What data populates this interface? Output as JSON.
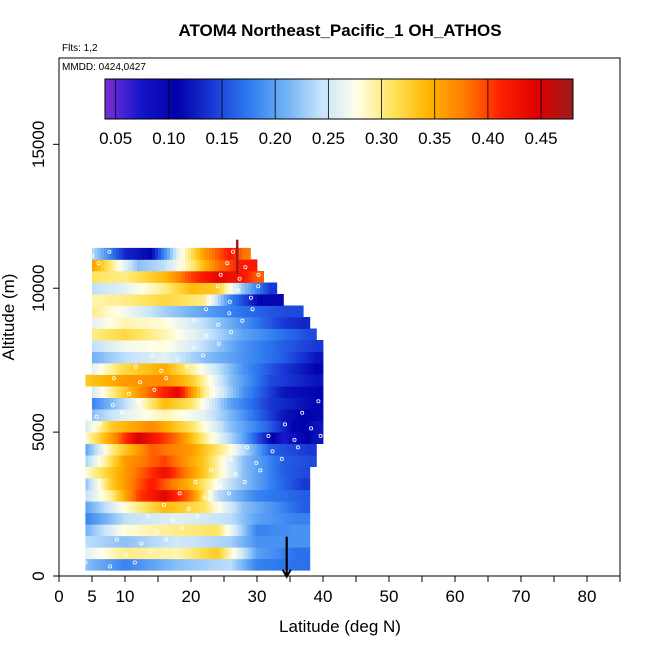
{
  "chart_data": {
    "type": "heatmap",
    "title": "ATOM4 Northeast_Pacific_1 OH_ATHOS",
    "annotations": [
      "Flts: 1,2",
      "MMDD: 0424,0427"
    ],
    "xlabel": "Latitude (deg N)",
    "ylabel": "Altitude (m)",
    "xlim": [
      0,
      85
    ],
    "ylim": [
      0,
      18000
    ],
    "x_ticks": [
      0,
      5,
      10,
      20,
      30,
      40,
      50,
      60,
      70,
      80
    ],
    "y_ticks": [
      0,
      5000,
      10000,
      15000
    ],
    "colorbar": {
      "range": [
        0.04,
        0.48
      ],
      "ticks": [
        "0.05",
        "0.10",
        "0.15",
        "0.20",
        "0.25",
        "0.30",
        "0.35",
        "0.40",
        "0.45"
      ],
      "colors": [
        "#7b2fd9",
        "#1515c9",
        "#0000aa",
        "#1a3ad6",
        "#2e7bf0",
        "#6fb0f5",
        "#c6e3fb",
        "#ffffe8",
        "#ffe35c",
        "#ffb400",
        "#ff7a00",
        "#ff2000",
        "#dd0000",
        "#9c1c1c"
      ]
    },
    "series": [
      {
        "alt": 400,
        "lat_range": [
          4,
          38
        ],
        "values": [
          [
            4,
            0.22
          ],
          [
            10,
            0.18
          ],
          [
            18,
            0.22
          ],
          [
            26,
            0.24
          ],
          [
            30,
            0.18
          ],
          [
            36,
            0.17
          ]
        ]
      },
      {
        "alt": 800,
        "lat_range": [
          4,
          38
        ],
        "values": [
          [
            4,
            0.26
          ],
          [
            10,
            0.3
          ],
          [
            18,
            0.29
          ],
          [
            24,
            0.33
          ],
          [
            30,
            0.2
          ],
          [
            36,
            0.17
          ]
        ]
      },
      {
        "alt": 1200,
        "lat_range": [
          4,
          38
        ],
        "values": [
          [
            4,
            0.24
          ],
          [
            10,
            0.22
          ],
          [
            18,
            0.25
          ],
          [
            26,
            0.23
          ],
          [
            30,
            0.19
          ],
          [
            36,
            0.19
          ]
        ]
      },
      {
        "alt": 1600,
        "lat_range": [
          4,
          38
        ],
        "values": [
          [
            4,
            0.21
          ],
          [
            10,
            0.28
          ],
          [
            18,
            0.3
          ],
          [
            24,
            0.31
          ],
          [
            30,
            0.18
          ],
          [
            36,
            0.19
          ]
        ]
      },
      {
        "alt": 2000,
        "lat_range": [
          4,
          38
        ],
        "values": [
          [
            4,
            0.18
          ],
          [
            10,
            0.24
          ],
          [
            18,
            0.26
          ],
          [
            26,
            0.24
          ],
          [
            30,
            0.2
          ],
          [
            36,
            0.18
          ]
        ]
      },
      {
        "alt": 2400,
        "lat_range": [
          4,
          38
        ],
        "values": [
          [
            4,
            0.2
          ],
          [
            10,
            0.28
          ],
          [
            16,
            0.34
          ],
          [
            22,
            0.31
          ],
          [
            28,
            0.22
          ],
          [
            34,
            0.18
          ],
          [
            37,
            0.16
          ]
        ]
      },
      {
        "alt": 2800,
        "lat_range": [
          4,
          38
        ],
        "values": [
          [
            4,
            0.24
          ],
          [
            8,
            0.3
          ],
          [
            12,
            0.4
          ],
          [
            16,
            0.44
          ],
          [
            20,
            0.38
          ],
          [
            24,
            0.24
          ],
          [
            30,
            0.18
          ],
          [
            37,
            0.16
          ]
        ]
      },
      {
        "alt": 3200,
        "lat_range": [
          4,
          38
        ],
        "values": [
          [
            4,
            0.22
          ],
          [
            8,
            0.33
          ],
          [
            14,
            0.42
          ],
          [
            20,
            0.34
          ],
          [
            26,
            0.24
          ],
          [
            32,
            0.18
          ],
          [
            37,
            0.14
          ]
        ]
      },
      {
        "alt": 3600,
        "lat_range": [
          4,
          38
        ],
        "values": [
          [
            4,
            0.28
          ],
          [
            10,
            0.36
          ],
          [
            16,
            0.43
          ],
          [
            22,
            0.33
          ],
          [
            28,
            0.22
          ],
          [
            34,
            0.16
          ],
          [
            37,
            0.15
          ]
        ]
      },
      {
        "alt": 4000,
        "lat_range": [
          4,
          39
        ],
        "values": [
          [
            4,
            0.23
          ],
          [
            10,
            0.36
          ],
          [
            16,
            0.4
          ],
          [
            22,
            0.33
          ],
          [
            28,
            0.22
          ],
          [
            34,
            0.16
          ],
          [
            38,
            0.15
          ]
        ]
      },
      {
        "alt": 4400,
        "lat_range": [
          4,
          39
        ],
        "values": [
          [
            4,
            0.2
          ],
          [
            8,
            0.3
          ],
          [
            14,
            0.39
          ],
          [
            20,
            0.36
          ],
          [
            26,
            0.28
          ],
          [
            32,
            0.16
          ],
          [
            38,
            0.14
          ]
        ]
      },
      {
        "alt": 4800,
        "lat_range": [
          4,
          40
        ],
        "values": [
          [
            4,
            0.28
          ],
          [
            8,
            0.36
          ],
          [
            12,
            0.45
          ],
          [
            18,
            0.38
          ],
          [
            22,
            0.3
          ],
          [
            28,
            0.2
          ],
          [
            34,
            0.07
          ],
          [
            39,
            0.12
          ]
        ]
      },
      {
        "alt": 5200,
        "lat_range": [
          4,
          40
        ],
        "values": [
          [
            4,
            0.25
          ],
          [
            8,
            0.33
          ],
          [
            14,
            0.37
          ],
          [
            20,
            0.31
          ],
          [
            26,
            0.22
          ],
          [
            32,
            0.16
          ],
          [
            36,
            0.1
          ],
          [
            39,
            0.12
          ]
        ]
      },
      {
        "alt": 5600,
        "lat_range": [
          5,
          40
        ],
        "values": [
          [
            5,
            0.22
          ],
          [
            10,
            0.26
          ],
          [
            16,
            0.29
          ],
          [
            22,
            0.26
          ],
          [
            28,
            0.19
          ],
          [
            34,
            0.12
          ],
          [
            39,
            0.1
          ]
        ]
      },
      {
        "alt": 6000,
        "lat_range": [
          5,
          40
        ],
        "values": [
          [
            5,
            0.18
          ],
          [
            10,
            0.24
          ],
          [
            16,
            0.34
          ],
          [
            20,
            0.31
          ],
          [
            26,
            0.2
          ],
          [
            32,
            0.14
          ],
          [
            39,
            0.11
          ]
        ]
      },
      {
        "alt": 6400,
        "lat_range": [
          5,
          40
        ],
        "values": [
          [
            5,
            0.25
          ],
          [
            10,
            0.33
          ],
          [
            14,
            0.39
          ],
          [
            18,
            0.44
          ],
          [
            22,
            0.3
          ],
          [
            28,
            0.19
          ],
          [
            34,
            0.12
          ],
          [
            39,
            0.11
          ]
        ]
      },
      {
        "alt": 6800,
        "lat_range": [
          4,
          40
        ],
        "values": [
          [
            4,
            0.33
          ],
          [
            10,
            0.36
          ],
          [
            16,
            0.37
          ],
          [
            20,
            0.33
          ],
          [
            26,
            0.22
          ],
          [
            32,
            0.15
          ],
          [
            39,
            0.12
          ]
        ]
      },
      {
        "alt": 7200,
        "lat_range": [
          5,
          40
        ],
        "values": [
          [
            5,
            0.26
          ],
          [
            10,
            0.32
          ],
          [
            16,
            0.35
          ],
          [
            22,
            0.27
          ],
          [
            28,
            0.19
          ],
          [
            34,
            0.14
          ],
          [
            39,
            0.11
          ]
        ]
      },
      {
        "alt": 7600,
        "lat_range": [
          5,
          40
        ],
        "values": [
          [
            5,
            0.21
          ],
          [
            10,
            0.24
          ],
          [
            16,
            0.26
          ],
          [
            22,
            0.22
          ],
          [
            28,
            0.19
          ],
          [
            34,
            0.16
          ],
          [
            39,
            0.12
          ]
        ]
      },
      {
        "alt": 8000,
        "lat_range": [
          5,
          40
        ],
        "values": [
          [
            5,
            0.24
          ],
          [
            10,
            0.27
          ],
          [
            16,
            0.28
          ],
          [
            22,
            0.24
          ],
          [
            28,
            0.19
          ],
          [
            34,
            0.16
          ],
          [
            39,
            0.14
          ]
        ]
      },
      {
        "alt": 8400,
        "lat_range": [
          5,
          39
        ],
        "values": [
          [
            5,
            0.3
          ],
          [
            10,
            0.32
          ],
          [
            16,
            0.29
          ],
          [
            22,
            0.25
          ],
          [
            28,
            0.2
          ],
          [
            34,
            0.17
          ],
          [
            38,
            0.15
          ]
        ]
      },
      {
        "alt": 8800,
        "lat_range": [
          5,
          38
        ],
        "values": [
          [
            5,
            0.26
          ],
          [
            10,
            0.29
          ],
          [
            16,
            0.28
          ],
          [
            22,
            0.24
          ],
          [
            28,
            0.19
          ],
          [
            34,
            0.14
          ],
          [
            37,
            0.13
          ]
        ]
      },
      {
        "alt": 9200,
        "lat_range": [
          5,
          37
        ],
        "values": [
          [
            5,
            0.3
          ],
          [
            10,
            0.27
          ],
          [
            16,
            0.23
          ],
          [
            22,
            0.2
          ],
          [
            28,
            0.17
          ],
          [
            34,
            0.15
          ]
        ]
      },
      {
        "alt": 9600,
        "lat_range": [
          5,
          34
        ],
        "values": [
          [
            5,
            0.29
          ],
          [
            10,
            0.3
          ],
          [
            16,
            0.32
          ],
          [
            22,
            0.3
          ],
          [
            26,
            0.18
          ],
          [
            31,
            0.1
          ]
        ]
      },
      {
        "alt": 10000,
        "lat_range": [
          5,
          33
        ],
        "values": [
          [
            5,
            0.24
          ],
          [
            10,
            0.26
          ],
          [
            16,
            0.3
          ],
          [
            20,
            0.34
          ],
          [
            24,
            0.33
          ],
          [
            28,
            0.22
          ],
          [
            32,
            0.14
          ]
        ]
      },
      {
        "alt": 10400,
        "lat_range": [
          5,
          31
        ],
        "values": [
          [
            5,
            0.31
          ],
          [
            10,
            0.3
          ],
          [
            16,
            0.34
          ],
          [
            20,
            0.4
          ],
          [
            24,
            0.44
          ],
          [
            28,
            0.42
          ],
          [
            30,
            0.39
          ]
        ]
      },
      {
        "alt": 10800,
        "lat_range": [
          5,
          30
        ],
        "values": [
          [
            5,
            0.36
          ],
          [
            8,
            0.3
          ],
          [
            12,
            0.22
          ],
          [
            16,
            0.24
          ],
          [
            20,
            0.3
          ],
          [
            24,
            0.38
          ],
          [
            28,
            0.42
          ]
        ]
      },
      {
        "alt": 11200,
        "lat_range": [
          5,
          29
        ],
        "values": [
          [
            5,
            0.24
          ],
          [
            10,
            0.13
          ],
          [
            14,
            0.11
          ],
          [
            18,
            0.26
          ],
          [
            22,
            0.36
          ],
          [
            26,
            0.42
          ],
          [
            28,
            0.38
          ]
        ]
      }
    ],
    "markers": [
      {
        "type": "arrow-down",
        "lat": 34.5,
        "alt": 600,
        "color": "#000000"
      },
      {
        "type": "arrow-up",
        "lat": 27.0,
        "alt": 11200,
        "color": "#9c1c1c"
      }
    ]
  }
}
